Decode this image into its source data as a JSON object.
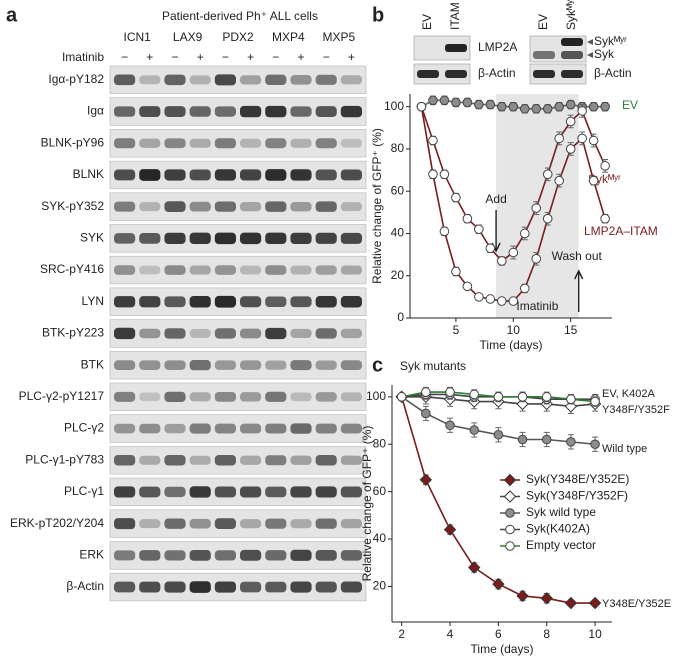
{
  "panel_a": {
    "letter": "a",
    "header": "Patient-derived Ph⁺ ALL cells",
    "cell_lines": [
      "ICN1",
      "LAX9",
      "PDX2",
      "MXP4",
      "MXP5"
    ],
    "treatment": "Imatinib",
    "signs": [
      "−",
      "+"
    ],
    "rows": [
      "Igα-pY182",
      "Igα",
      "BLNK-pY96",
      "BLNK",
      "SYK-pY352",
      "SYK",
      "SRC-pY416",
      "LYN",
      "BTK-pY223",
      "BTK",
      "PLC-γ2-pY1217",
      "PLC-γ2",
      "PLC-γ1-pY783",
      "PLC-γ1",
      "ERK-pT202/Y204",
      "ERK",
      "β-Actin"
    ]
  },
  "panel_b_blots": {
    "letter": "b",
    "left": {
      "lanes": [
        "EV",
        "ITAM"
      ],
      "rows": [
        "LMP2A",
        "β-Actin"
      ]
    },
    "right": {
      "lanes": [
        "EV",
        "Sykᴹʸʳ"
      ],
      "rows": [
        "Sykᴹʸʳ",
        "Syk",
        "β-Actin"
      ]
    }
  },
  "chart_data": [
    {
      "type": "line",
      "x": [
        2,
        3,
        4,
        5,
        6,
        7,
        8,
        9,
        10,
        11,
        12,
        13,
        14,
        15,
        16,
        17,
        18
      ],
      "xlim": [
        1,
        18.6
      ],
      "xticks": [
        5,
        10,
        15
      ],
      "ylim": [
        0,
        106
      ],
      "yticks": [
        0,
        20,
        40,
        60,
        80,
        100
      ],
      "xlabel": "Time (days)",
      "ylabel": "Relative change of GFP⁺ (%)",
      "shaded_span": [
        8.5,
        15.7
      ],
      "annotations": [
        "Add",
        "Wash out",
        "Imatinib"
      ],
      "series": [
        {
          "name": "EV",
          "color": "#666666",
          "marker": "circle",
          "marker_fill": "#8c8c8c",
          "label_color": "#2e7d32",
          "values": [
            100,
            103,
            103,
            102,
            102,
            101,
            101,
            100,
            100,
            99,
            99,
            99,
            100,
            101,
            100,
            100,
            100
          ],
          "errors": [
            1,
            2,
            2,
            2,
            2,
            2,
            2,
            2,
            2,
            2,
            2,
            2,
            2,
            2,
            2,
            2,
            2
          ]
        },
        {
          "name": "Sykᴹʸʳ",
          "color": "#7a1c1c",
          "marker": "circle",
          "marker_fill": "#ffffff",
          "label_color": "#7a1c1c",
          "values": [
            100,
            84,
            68,
            57,
            47,
            42,
            33,
            27,
            31,
            40,
            52,
            68,
            85,
            93,
            98,
            84,
            72
          ],
          "errors": [
            1,
            2,
            2,
            2,
            2,
            2,
            2,
            2,
            3,
            3,
            3,
            3,
            3,
            3,
            3,
            3,
            3
          ]
        },
        {
          "name": "LMP2A–ITAM",
          "color": "#7a1c1c",
          "marker": "circle",
          "marker_fill": "#ffffff",
          "label_color": "#7a1c1c",
          "values": [
            100,
            68,
            41,
            22,
            15,
            10,
            9,
            8,
            8,
            14,
            28,
            47,
            65,
            80,
            85,
            65,
            47
          ],
          "errors": [
            1,
            2,
            2,
            2,
            1,
            1,
            1,
            1,
            1,
            2,
            3,
            3,
            3,
            3,
            3,
            2,
            2
          ]
        }
      ]
    },
    {
      "type": "line",
      "panel_label": "c",
      "title": "Syk mutants",
      "x": [
        2,
        3,
        4,
        5,
        6,
        7,
        8,
        9,
        10
      ],
      "xlim": [
        1.6,
        10.7
      ],
      "xticks": [
        2,
        4,
        6,
        8,
        10
      ],
      "ylim": [
        5,
        105
      ],
      "yticks": [
        20,
        40,
        60,
        80,
        100
      ],
      "xlabel": "Time (days)",
      "ylabel": "Relative change of GFP⁺ (%)",
      "annotations": [
        "EV, K402A",
        "Y348F/Y352F",
        "Wild type",
        "Y348E/Y352E"
      ],
      "series": [
        {
          "name": "Syk(Y348E/Y352E)",
          "color": "#7a1c1c",
          "marker": "diamond",
          "marker_fill": "#7a1c1c",
          "values": [
            100,
            65,
            44,
            28,
            21,
            16,
            15,
            13,
            13
          ],
          "errors": [
            1,
            2,
            2,
            2,
            2,
            2,
            2,
            1,
            1
          ]
        },
        {
          "name": "Syk(Y348F/Y352F)",
          "color": "#444444",
          "marker": "diamond",
          "marker_fill": "#ffffff",
          "values": [
            100,
            100,
            99,
            98,
            98,
            97,
            97,
            96,
            97
          ],
          "errors": [
            1,
            3,
            3,
            3,
            3,
            3,
            3,
            3,
            3
          ]
        },
        {
          "name": "Syk wild type",
          "color": "#555555",
          "marker": "circle",
          "marker_fill": "#8c8c8c",
          "values": [
            100,
            93,
            88,
            86,
            84,
            82,
            82,
            81,
            80
          ],
          "errors": [
            1,
            3,
            3,
            3,
            3,
            3,
            3,
            3,
            3
          ]
        },
        {
          "name": "Syk(K402A)",
          "color": "#444444",
          "marker": "circle",
          "marker_fill": "#ffffff",
          "values": [
            100,
            101,
            101,
            100,
            100,
            100,
            99,
            99,
            99
          ],
          "errors": [
            1,
            2,
            2,
            2,
            2,
            2,
            2,
            2,
            2
          ]
        },
        {
          "name": "Empty vector",
          "color": "#2e7d32",
          "marker": "circle",
          "marker_fill": "#ffffff",
          "values": [
            100,
            102,
            102,
            101,
            100,
            100,
            100,
            99,
            98
          ],
          "errors": [
            1,
            2,
            2,
            2,
            2,
            2,
            2,
            2,
            2
          ]
        }
      ]
    }
  ]
}
